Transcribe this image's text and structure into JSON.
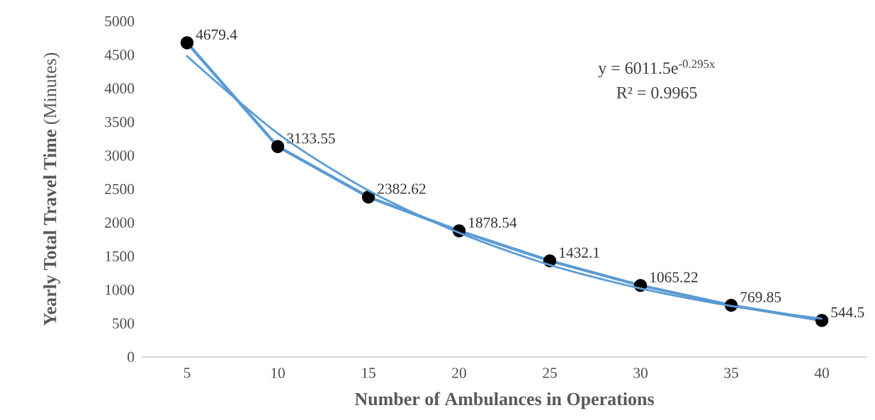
{
  "chart_data": {
    "type": "line",
    "xlabel": "Number of Ambulances in Operations",
    "ylabel": "**Yearly Total Travel Time** (Minutes)",
    "x": [
      5,
      10,
      15,
      20,
      25,
      30,
      35,
      40
    ],
    "xlim": [
      2.5,
      42.5
    ],
    "xticks": [
      5,
      10,
      15,
      20,
      25,
      30,
      35,
      40
    ],
    "ylim": [
      0,
      5000
    ],
    "yticks": [
      0,
      500,
      1000,
      1500,
      2000,
      2500,
      3000,
      3500,
      4000,
      4500,
      5000
    ],
    "series": [
      {
        "type": "line",
        "color": "#5b9bd5",
        "marker": "circle",
        "line_style": "solid",
        "data_labels": true,
        "values": [
          4679.4,
          3133.55,
          2382.62,
          1878.54,
          1432.1,
          1065.22,
          769.85,
          544.5
        ]
      },
      {
        "type": "line",
        "color": "#5b9bd5",
        "marker": "none",
        "line_style": "dotted",
        "x": [
          5,
          10,
          15,
          20,
          25,
          30,
          35,
          40
        ],
        "values": [
          4480,
          3330,
          2480,
          1850,
          1370,
          1020,
          760,
          570
        ]
      }
    ],
    "annotations": [
      "y = 6011.5e$^{-0.295x}$",
      "R² = 0.9965"
    ]
  }
}
